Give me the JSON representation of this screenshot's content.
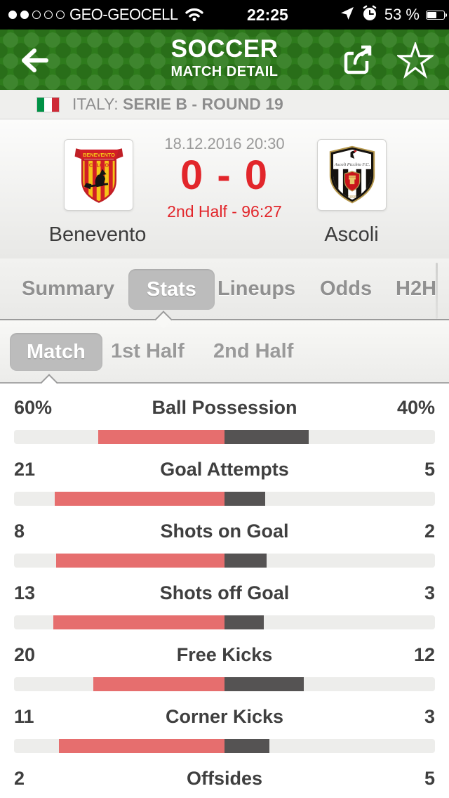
{
  "colors": {
    "header_green": "#2e7b1c",
    "score_red": "#e2262b",
    "home_bar": "#e66e6e",
    "away_bar": "#555353"
  },
  "status_bar": {
    "carrier": "GEO-GEOCELL",
    "time": "22:25",
    "battery_percent": "53 %",
    "signal_filled": 2,
    "signal_total": 5
  },
  "header": {
    "title": "SOCCER",
    "subtitle": "MATCH DETAIL"
  },
  "league_bar": {
    "country": "ITALY:",
    "competition": "SERIE B - ROUND 19"
  },
  "match": {
    "date": "18.12.2016 20:30",
    "score": "0 - 0",
    "status": "2nd Half - 96:27",
    "home_team": "Benevento",
    "away_team": "Ascoli"
  },
  "tabs": [
    {
      "label": "Summary",
      "selected": false
    },
    {
      "label": "Stats",
      "selected": true
    },
    {
      "label": "Lineups",
      "selected": false
    },
    {
      "label": "Odds",
      "selected": false
    },
    {
      "label": "H2H",
      "selected": false
    }
  ],
  "subtabs": [
    {
      "label": "Match",
      "selected": true
    },
    {
      "label": "1st Half",
      "selected": false
    },
    {
      "label": "2nd Half",
      "selected": false
    }
  ],
  "stats": [
    {
      "label": "Ball Possession",
      "home": "60%",
      "away": "40%"
    },
    {
      "label": "Goal Attempts",
      "home": "21",
      "away": "5"
    },
    {
      "label": "Shots on Goal",
      "home": "8",
      "away": "2"
    },
    {
      "label": "Shots off Goal",
      "home": "13",
      "away": "3"
    },
    {
      "label": "Free Kicks",
      "home": "20",
      "away": "12"
    },
    {
      "label": "Corner Kicks",
      "home": "11",
      "away": "3"
    },
    {
      "label": "Offsides",
      "home": "2",
      "away": "5"
    }
  ]
}
